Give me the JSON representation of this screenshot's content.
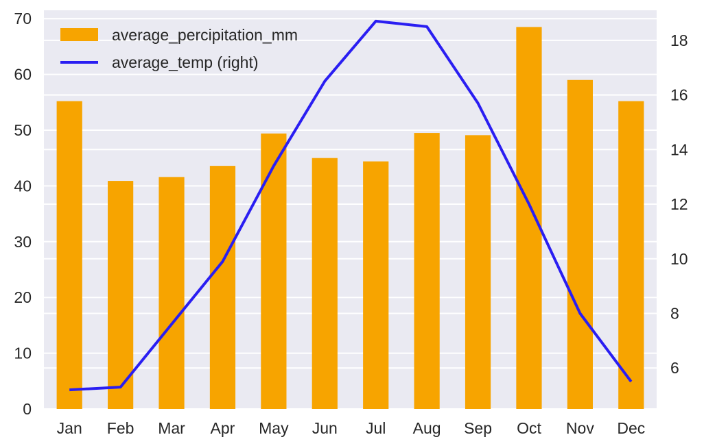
{
  "chart_data": {
    "type": "bar",
    "title": "",
    "xlabel": "",
    "ylabel": "",
    "categories": [
      "Jan",
      "Feb",
      "Mar",
      "Apr",
      "May",
      "Jun",
      "Jul",
      "Aug",
      "Sep",
      "Oct",
      "Nov",
      "Dec"
    ],
    "series": [
      {
        "name": "average_percipitation_mm",
        "type": "bar",
        "axis": "left",
        "color": "#f7a400",
        "values": [
          55.2,
          40.9,
          41.6,
          43.6,
          49.4,
          45.0,
          44.4,
          49.5,
          49.1,
          68.5,
          59.0,
          55.2
        ]
      },
      {
        "name": "average_temp (right)",
        "type": "line",
        "axis": "right",
        "color": "#2a1ef2",
        "values": [
          5.2,
          5.3,
          7.6,
          9.9,
          13.4,
          16.5,
          18.7,
          18.5,
          15.7,
          12.0,
          8.0,
          5.5
        ]
      }
    ],
    "ylim_left": [
      0,
      71.5
    ],
    "yticks_left": [
      0,
      10,
      20,
      30,
      40,
      50,
      60,
      70
    ],
    "ylim_right": [
      4.5,
      19.1
    ],
    "yticks_right": [
      6,
      8,
      10,
      12,
      14,
      16,
      18
    ],
    "grid": true,
    "background": "#eaeaf2",
    "legend_position": "top-left"
  }
}
